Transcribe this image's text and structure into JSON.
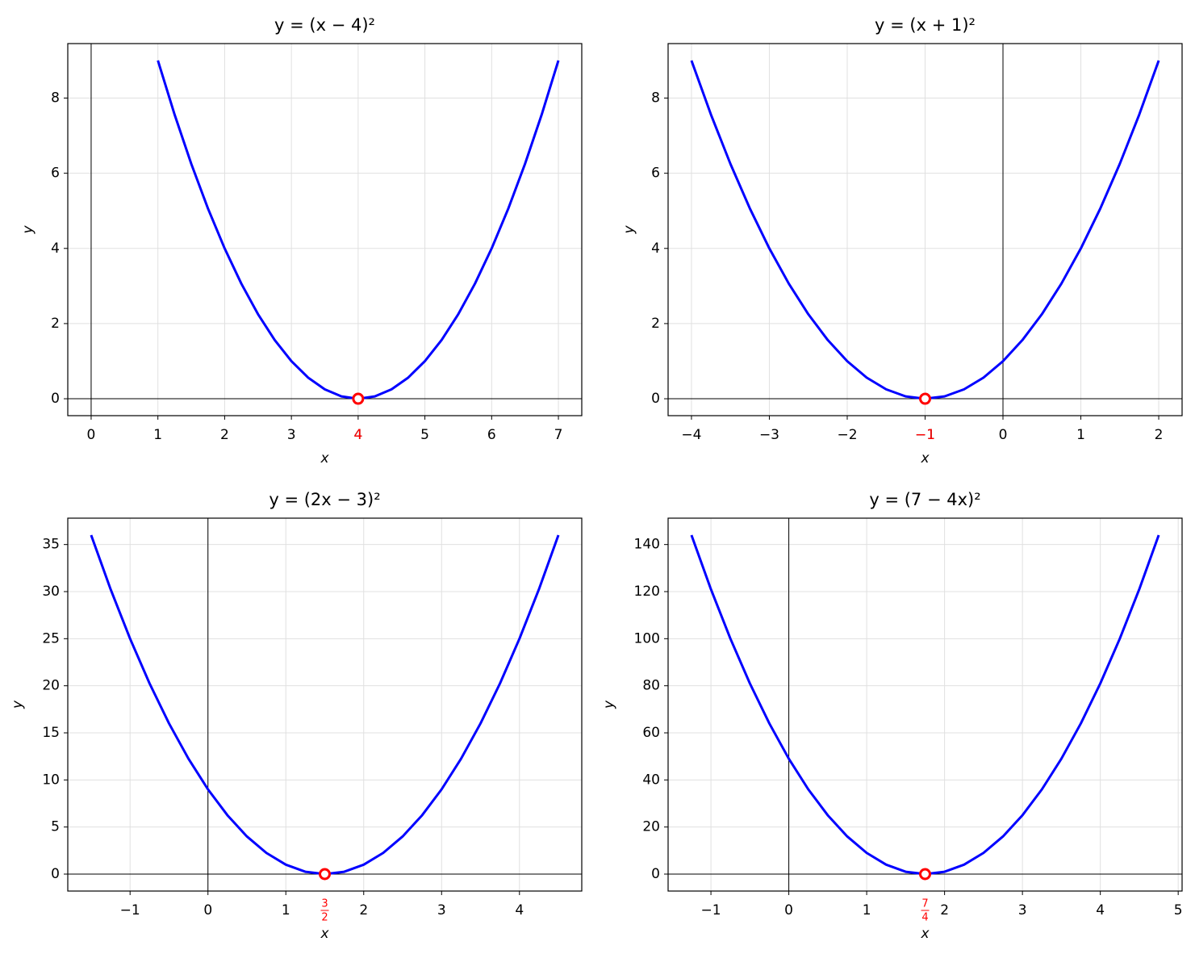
{
  "chart_data": [
    {
      "type": "line",
      "title": "y = (x − 4)²",
      "x_label": "x",
      "y_label": "y",
      "color": "#0000ff",
      "grid": true,
      "zero_lines": true,
      "x": [
        1,
        1.25,
        1.5,
        1.75,
        2,
        2.25,
        2.5,
        2.75,
        3,
        3.25,
        3.5,
        3.75,
        4,
        4.25,
        4.5,
        4.75,
        5,
        5.25,
        5.5,
        5.75,
        6,
        6.25,
        6.5,
        6.75,
        7
      ],
      "values": [
        9,
        7.5625,
        6.25,
        5.0625,
        4,
        3.0625,
        2.25,
        1.5625,
        1,
        0.5625,
        0.25,
        0.0625,
        0,
        0.0625,
        0.25,
        0.5625,
        1,
        1.5625,
        2.25,
        3.0625,
        4,
        5.0625,
        6.25,
        7.5625,
        9
      ],
      "vertex": {
        "x": 4,
        "y": 0
      },
      "vertex_color": "#ff0000",
      "vertex_tick": 4,
      "xlim": [
        -0.35,
        7.35
      ],
      "ylim": [
        -0.45,
        9.45
      ],
      "xticks": [
        0,
        1,
        2,
        3,
        4,
        5,
        6,
        7
      ],
      "yticks": [
        0,
        2,
        4,
        6,
        8
      ]
    },
    {
      "type": "line",
      "title": "y = (x + 1)²",
      "x_label": "x",
      "y_label": "y",
      "color": "#0000ff",
      "grid": true,
      "zero_lines": true,
      "x": [
        -4,
        -3.75,
        -3.5,
        -3.25,
        -3,
        -2.75,
        -2.5,
        -2.25,
        -2,
        -1.75,
        -1.5,
        -1.25,
        -1,
        -0.75,
        -0.5,
        -0.25,
        0,
        0.25,
        0.5,
        0.75,
        1,
        1.25,
        1.5,
        1.75,
        2
      ],
      "values": [
        9,
        7.5625,
        6.25,
        5.0625,
        4,
        3.0625,
        2.25,
        1.5625,
        1,
        0.5625,
        0.25,
        0.0625,
        0,
        0.0625,
        0.25,
        0.5625,
        1,
        1.5625,
        2.25,
        3.0625,
        4,
        5.0625,
        6.25,
        7.5625,
        9
      ],
      "vertex": {
        "x": -1,
        "y": 0
      },
      "vertex_color": "#ff0000",
      "vertex_tick": {
        "value": -1,
        "label": "−1"
      },
      "xlim": [
        -4.3,
        2.3
      ],
      "ylim": [
        -0.45,
        9.45
      ],
      "xticks": [
        {
          "value": -4,
          "label": "−4"
        },
        {
          "value": -3,
          "label": "−3"
        },
        {
          "value": -2,
          "label": "−2"
        },
        {
          "value": -1,
          "label": "−1"
        },
        0,
        1,
        2
      ],
      "yticks": [
        0,
        2,
        4,
        6,
        8
      ]
    },
    {
      "type": "line",
      "title": "y = (2x − 3)²",
      "x_label": "x",
      "y_label": "y",
      "color": "#0000ff",
      "grid": true,
      "zero_lines": true,
      "x": [
        -1.5,
        -1.25,
        -1,
        -0.75,
        -0.5,
        -0.25,
        0,
        0.25,
        0.5,
        0.75,
        1,
        1.25,
        1.5,
        1.75,
        2,
        2.25,
        2.5,
        2.75,
        3,
        3.25,
        3.5,
        3.75,
        4,
        4.25,
        4.5
      ],
      "values": [
        36,
        30.25,
        25,
        20.25,
        16,
        12.25,
        9,
        6.25,
        4,
        2.25,
        1,
        0.25,
        0,
        0.25,
        1,
        2.25,
        4,
        6.25,
        9,
        12.25,
        16,
        20.25,
        25,
        30.25,
        36
      ],
      "vertex": {
        "x": 1.5,
        "y": 0
      },
      "vertex_color": "#ff0000",
      "vertex_tick": {
        "value": 1.5,
        "numerator": "3",
        "denominator": "2"
      },
      "xlim": [
        -1.8,
        4.8
      ],
      "ylim": [
        -1.8,
        37.8
      ],
      "xticks": [
        {
          "value": -1,
          "label": "−1"
        },
        0,
        1,
        2,
        3,
        4
      ],
      "yticks": [
        0,
        5,
        10,
        15,
        20,
        25,
        30,
        35
      ]
    },
    {
      "type": "line",
      "title": "y = (7 − 4x)²",
      "x_label": "x",
      "y_label": "y",
      "color": "#0000ff",
      "grid": true,
      "zero_lines": true,
      "x": [
        -1.25,
        -1,
        -0.75,
        -0.5,
        -0.25,
        0,
        0.25,
        0.5,
        0.75,
        1,
        1.25,
        1.5,
        1.75,
        2,
        2.25,
        2.5,
        2.75,
        3,
        3.25,
        3.5,
        3.75,
        4,
        4.25,
        4.5,
        4.75
      ],
      "values": [
        144,
        121,
        100,
        81,
        64,
        49,
        36,
        25,
        16,
        9,
        4,
        1,
        0,
        1,
        4,
        9,
        16,
        25,
        36,
        49,
        64,
        81,
        100,
        121,
        144
      ],
      "vertex": {
        "x": 1.75,
        "y": 0
      },
      "vertex_color": "#ff0000",
      "vertex_tick": {
        "value": 1.75,
        "numerator": "7",
        "denominator": "4"
      },
      "xlim": [
        -1.55,
        5.05
      ],
      "ylim": [
        -7.2,
        151.2
      ],
      "xticks": [
        {
          "value": -1,
          "label": "−1"
        },
        0,
        1,
        2,
        3,
        4,
        5
      ],
      "yticks": [
        0,
        20,
        40,
        60,
        80,
        100,
        120,
        140
      ]
    }
  ]
}
